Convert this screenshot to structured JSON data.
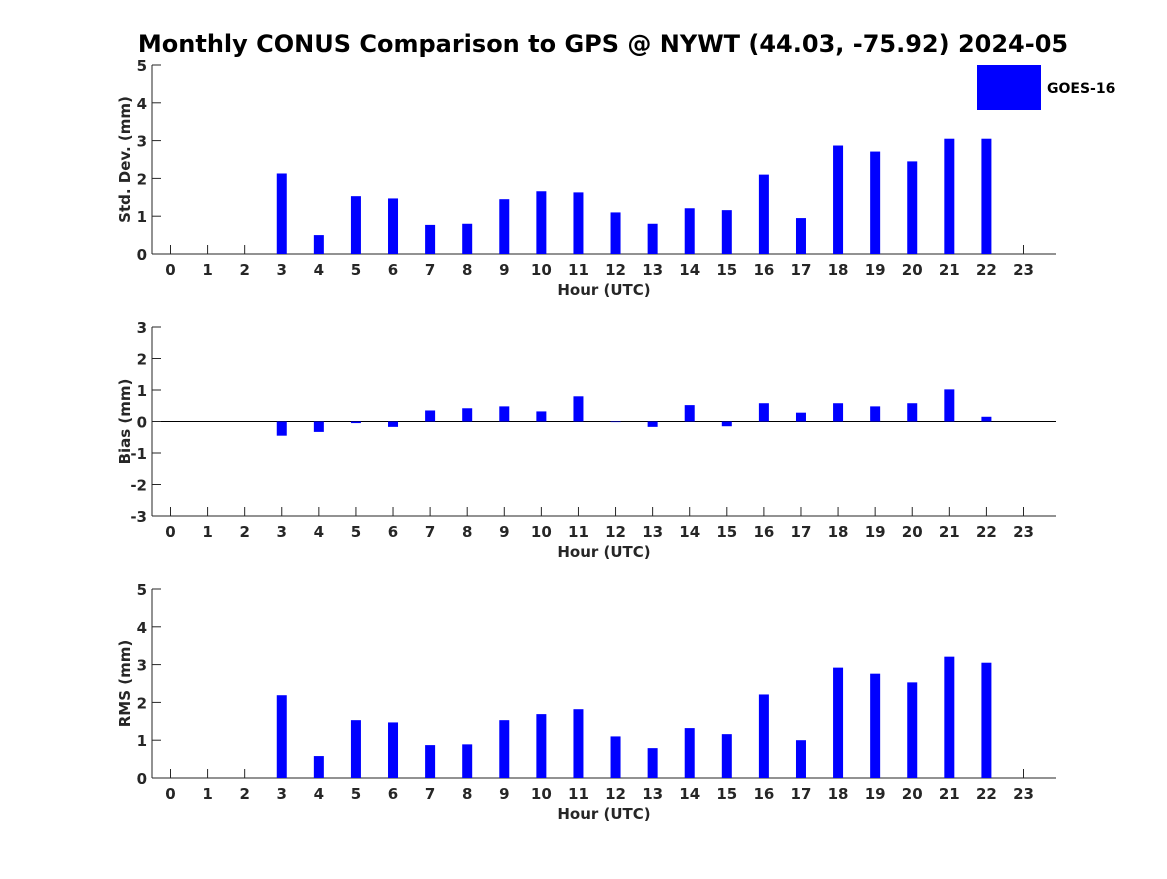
{
  "title": "Monthly CONUS Comparison to GPS @ NYWT (44.03, -75.92) 2024-05",
  "legend": {
    "label": "GOES-16",
    "color": "#0000ff",
    "placement": "top-right"
  },
  "chart_data": [
    {
      "type": "bar",
      "ylabel": "Std. Dev. (mm)",
      "xlabel": "Hour (UTC)",
      "ylim": [
        0,
        5
      ],
      "yticks": [
        "0",
        "1",
        "2",
        "3",
        "4",
        "5"
      ],
      "categories": [
        "0",
        "1",
        "2",
        "3",
        "4",
        "5",
        "6",
        "7",
        "8",
        "9",
        "10",
        "11",
        "12",
        "13",
        "14",
        "15",
        "16",
        "17",
        "18",
        "19",
        "20",
        "21",
        "22",
        "23"
      ],
      "series": [
        {
          "name": "GOES-16",
          "color": "#0000ff",
          "values": [
            null,
            null,
            null,
            2.13,
            0.5,
            1.53,
            1.47,
            0.77,
            0.8,
            1.45,
            1.66,
            1.63,
            1.1,
            0.8,
            1.21,
            1.16,
            2.1,
            0.95,
            2.87,
            2.71,
            2.45,
            3.05,
            3.05,
            null
          ]
        }
      ],
      "grid": false
    },
    {
      "type": "bar",
      "ylabel": "Bias (mm)",
      "xlabel": "Hour (UTC)",
      "ylim": [
        -3,
        3
      ],
      "yticks": [
        "-3",
        "-2",
        "-1",
        "0",
        "1",
        "2",
        "3"
      ],
      "categories": [
        "0",
        "1",
        "2",
        "3",
        "4",
        "5",
        "6",
        "7",
        "8",
        "9",
        "10",
        "11",
        "12",
        "13",
        "14",
        "15",
        "16",
        "17",
        "18",
        "19",
        "20",
        "21",
        "22",
        "23"
      ],
      "series": [
        {
          "name": "GOES-16",
          "color": "#0000ff",
          "values": [
            null,
            null,
            null,
            -0.45,
            -0.33,
            -0.05,
            -0.17,
            0.35,
            0.42,
            0.48,
            0.32,
            0.8,
            0.0,
            -0.17,
            0.52,
            -0.15,
            0.58,
            0.28,
            0.58,
            0.48,
            0.58,
            1.02,
            0.15,
            null
          ]
        }
      ],
      "grid": false
    },
    {
      "type": "bar",
      "ylabel": "RMS (mm)",
      "xlabel": "Hour (UTC)",
      "ylim": [
        0,
        5
      ],
      "yticks": [
        "0",
        "1",
        "2",
        "3",
        "4",
        "5"
      ],
      "categories": [
        "0",
        "1",
        "2",
        "3",
        "4",
        "5",
        "6",
        "7",
        "8",
        "9",
        "10",
        "11",
        "12",
        "13",
        "14",
        "15",
        "16",
        "17",
        "18",
        "19",
        "20",
        "21",
        "22",
        "23"
      ],
      "series": [
        {
          "name": "GOES-16",
          "color": "#0000ff",
          "values": [
            null,
            null,
            null,
            2.19,
            0.58,
            1.53,
            1.47,
            0.87,
            0.89,
            1.53,
            1.69,
            1.82,
            1.1,
            0.79,
            1.32,
            1.16,
            2.21,
            1.0,
            2.92,
            2.76,
            2.53,
            3.21,
            3.05,
            null
          ]
        }
      ],
      "grid": false
    }
  ]
}
